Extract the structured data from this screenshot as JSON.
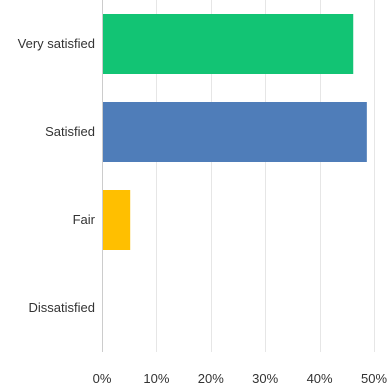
{
  "chart_data": {
    "type": "bar",
    "orientation": "horizontal",
    "categories": [
      "Very satisfied",
      "Satisfied",
      "Fair",
      "Dissatisfied"
    ],
    "values": [
      46,
      48.5,
      5,
      0
    ],
    "colors": [
      "#12c474",
      "#4f7db9",
      "#ffbf00",
      "#12c474"
    ],
    "xlim": [
      0,
      50
    ],
    "xticks": [
      0,
      10,
      20,
      30,
      40,
      50
    ],
    "xtick_labels": [
      "0%",
      "10%",
      "20%",
      "30%",
      "40%",
      "50%"
    ],
    "grid": true,
    "title": "",
    "xlabel": "",
    "ylabel": ""
  }
}
